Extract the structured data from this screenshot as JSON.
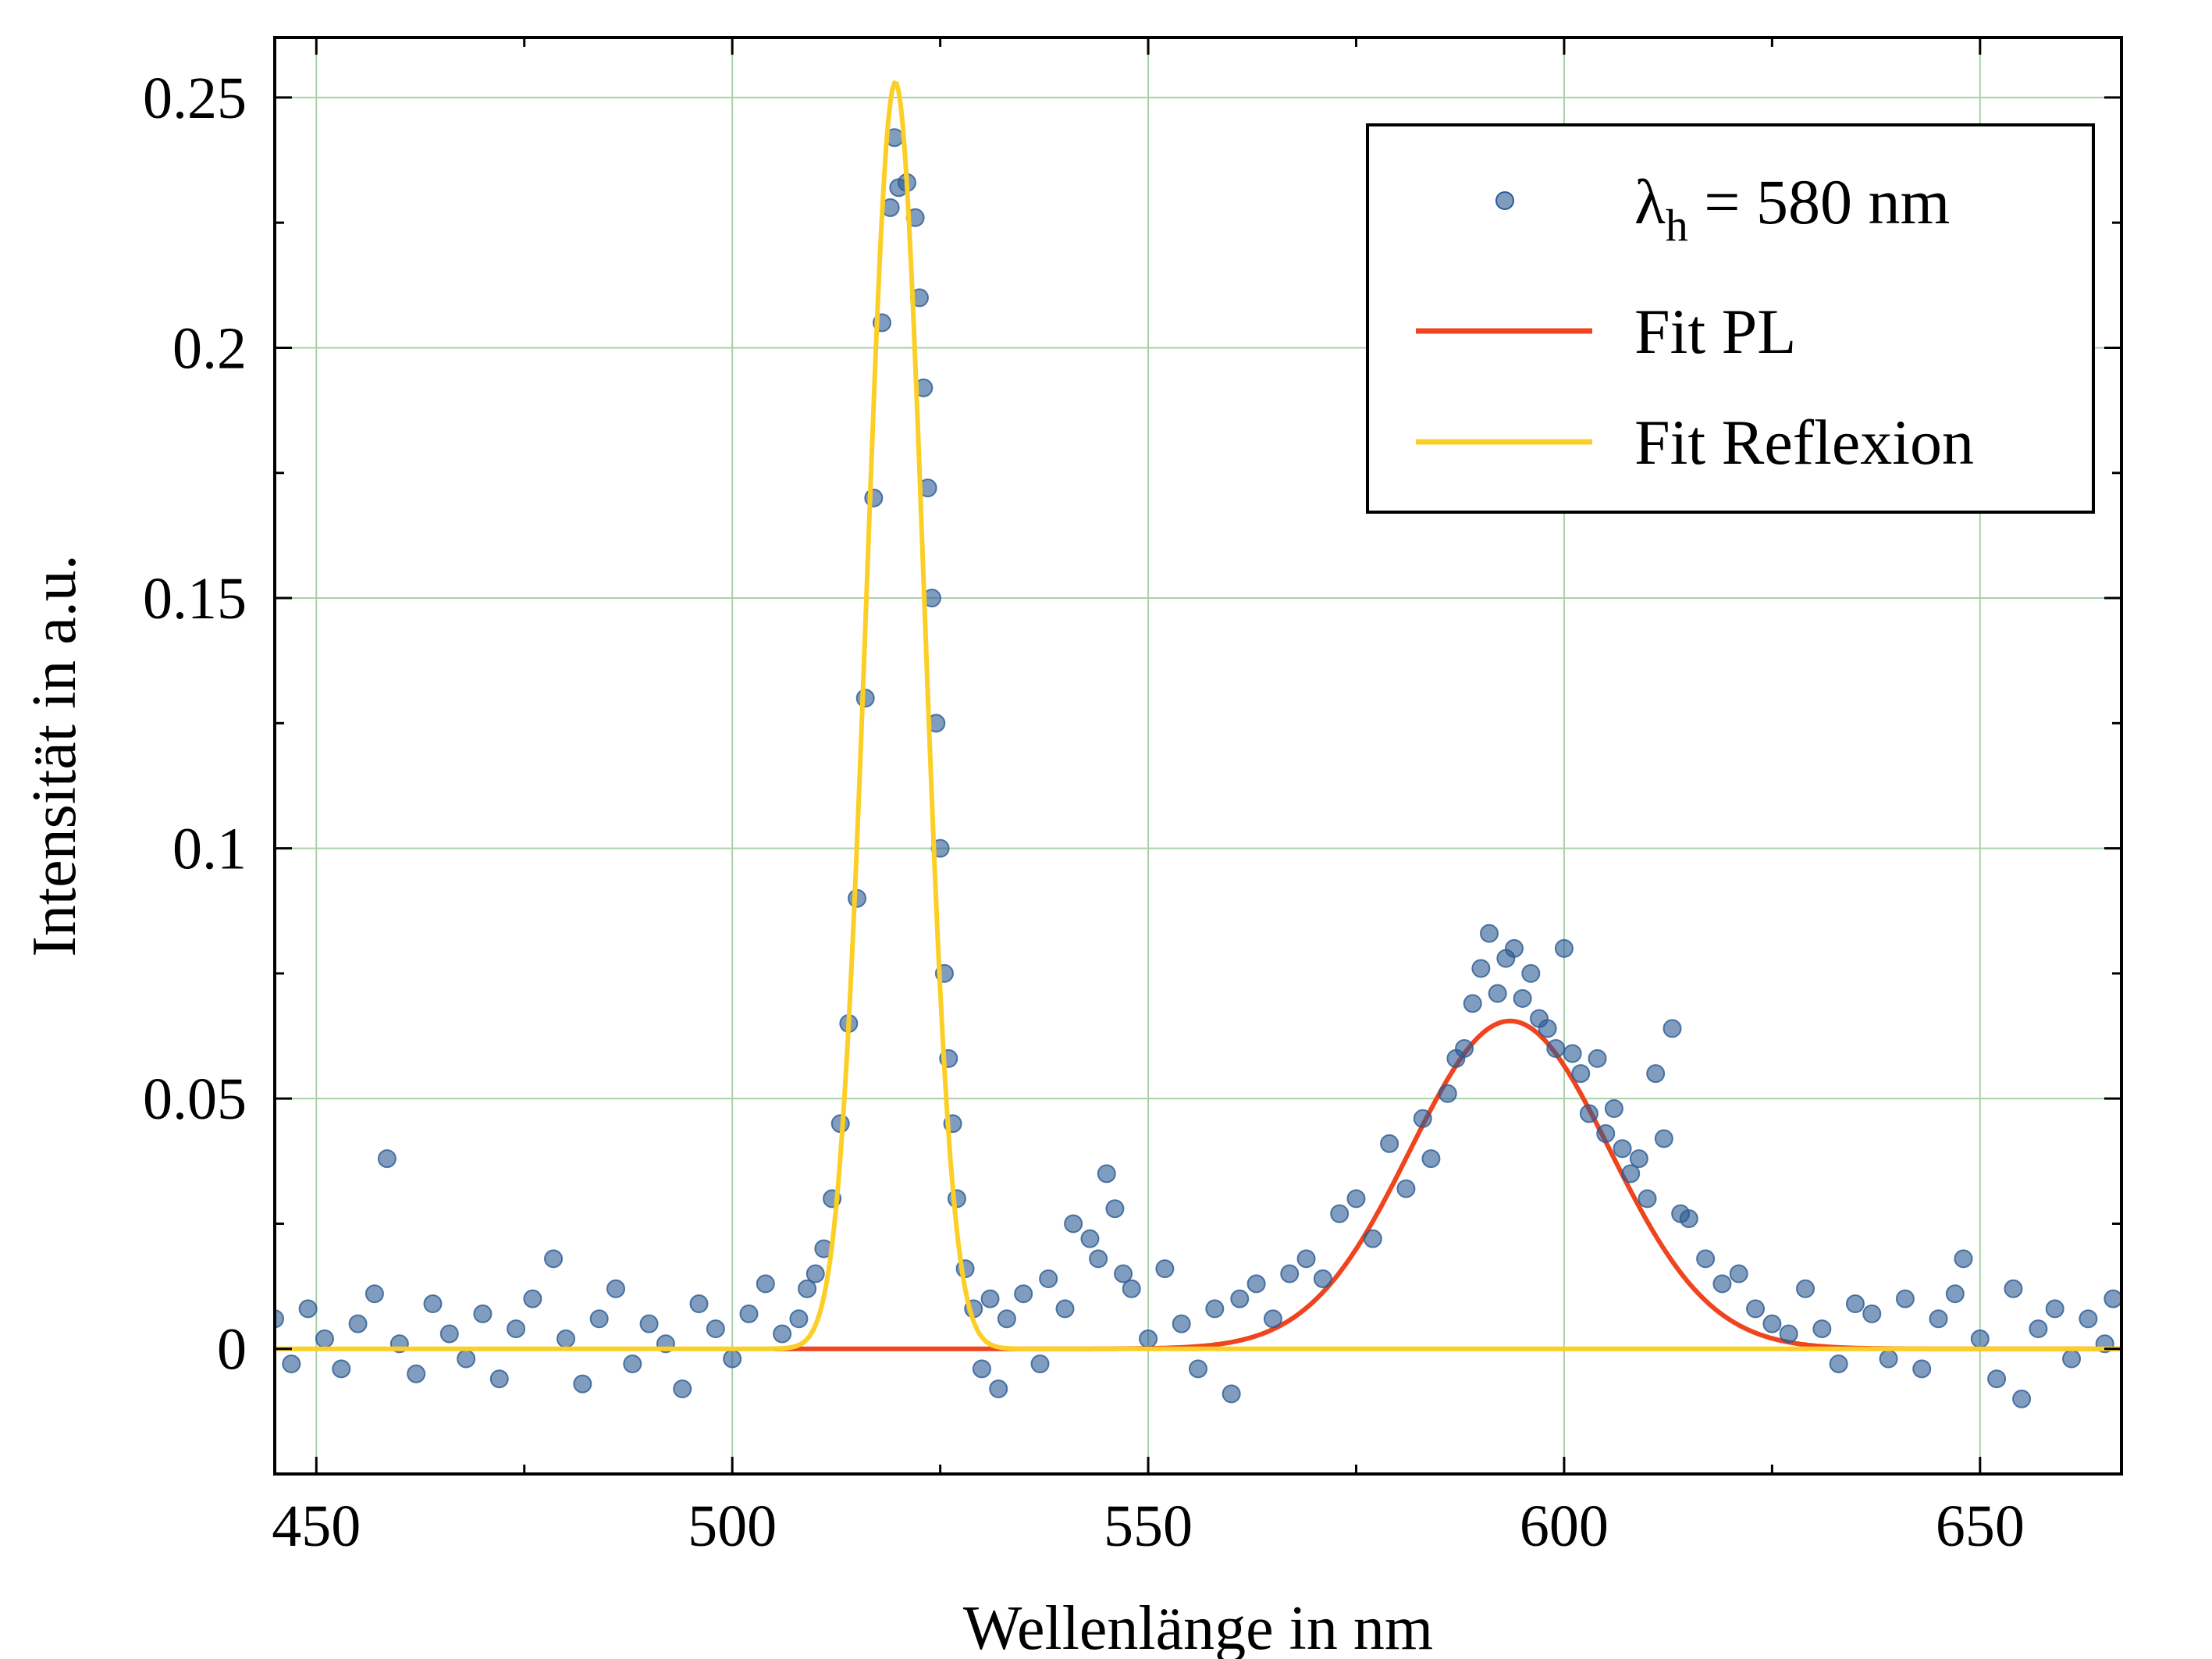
{
  "chart_data": {
    "type": "scatter",
    "xlabel": "Wellenlänge in nm",
    "ylabel": "Intensität in a.u.",
    "xlim": [
      445,
      667
    ],
    "ylim": [
      -0.025,
      0.262
    ],
    "x_ticks": [
      450,
      500,
      550,
      600,
      650
    ],
    "x_tick_labels": [
      "450",
      "500",
      "550",
      "600",
      "650"
    ],
    "y_ticks": [
      0,
      0.05,
      0.1,
      0.15,
      0.2,
      0.25
    ],
    "y_tick_labels": [
      "0",
      "0.05",
      "0.1",
      "0.15",
      "0.2",
      "0.25"
    ],
    "grid": true,
    "legend_position": "top-right",
    "legend": [
      {
        "symbol": "marker",
        "label_main": "λ",
        "label_sub": "h",
        "label_rest": " = 580 nm",
        "color": "#2b5a92"
      },
      {
        "symbol": "line",
        "label": "Fit PL",
        "color": "#f0441f"
      },
      {
        "symbol": "line",
        "label": "Fit Reflexion",
        "color": "#fccf26"
      }
    ],
    "series": [
      {
        "name": "λh = 580 nm",
        "kind": "scatter",
        "color": "#2b5a92",
        "points": [
          [
            445,
            0.006
          ],
          [
            447,
            -0.003
          ],
          [
            449,
            0.008
          ],
          [
            451,
            0.002
          ],
          [
            453,
            -0.004
          ],
          [
            455,
            0.005
          ],
          [
            457,
            0.011
          ],
          [
            458.5,
            0.038
          ],
          [
            460,
            0.001
          ],
          [
            462,
            -0.005
          ],
          [
            464,
            0.009
          ],
          [
            466,
            0.003
          ],
          [
            468,
            -0.002
          ],
          [
            470,
            0.007
          ],
          [
            472,
            -0.006
          ],
          [
            474,
            0.004
          ],
          [
            476,
            0.01
          ],
          [
            478.5,
            0.018
          ],
          [
            480,
            0.002
          ],
          [
            482,
            -0.007
          ],
          [
            484,
            0.006
          ],
          [
            486,
            0.012
          ],
          [
            488,
            -0.003
          ],
          [
            490,
            0.005
          ],
          [
            492,
            0.001
          ],
          [
            494,
            -0.008
          ],
          [
            496,
            0.009
          ],
          [
            498,
            0.004
          ],
          [
            500,
            -0.002
          ],
          [
            502,
            0.007
          ],
          [
            504,
            0.013
          ],
          [
            506,
            0.003
          ],
          [
            508,
            0.006
          ],
          [
            509,
            0.012
          ],
          [
            510,
            0.015
          ],
          [
            511,
            0.02
          ],
          [
            512,
            0.03
          ],
          [
            513,
            0.045
          ],
          [
            514,
            0.065
          ],
          [
            515,
            0.09
          ],
          [
            516,
            0.13
          ],
          [
            517,
            0.17
          ],
          [
            518,
            0.205
          ],
          [
            519,
            0.228
          ],
          [
            519.5,
            0.242
          ],
          [
            520,
            0.232
          ],
          [
            521,
            0.233
          ],
          [
            522,
            0.226
          ],
          [
            522.5,
            0.21
          ],
          [
            523,
            0.192
          ],
          [
            523.5,
            0.172
          ],
          [
            524,
            0.15
          ],
          [
            524.5,
            0.125
          ],
          [
            525,
            0.1
          ],
          [
            525.5,
            0.075
          ],
          [
            526,
            0.058
          ],
          [
            526.5,
            0.045
          ],
          [
            527,
            0.03
          ],
          [
            528,
            0.016
          ],
          [
            529,
            0.008
          ],
          [
            530,
            -0.004
          ],
          [
            531,
            0.01
          ],
          [
            532,
            -0.008
          ],
          [
            533,
            0.006
          ],
          [
            535,
            0.011
          ],
          [
            537,
            -0.003
          ],
          [
            538,
            0.014
          ],
          [
            540,
            0.008
          ],
          [
            541,
            0.025
          ],
          [
            543,
            0.022
          ],
          [
            544,
            0.018
          ],
          [
            545,
            0.035
          ],
          [
            546,
            0.028
          ],
          [
            547,
            0.015
          ],
          [
            548,
            0.012
          ],
          [
            550,
            0.002
          ],
          [
            552,
            0.016
          ],
          [
            554,
            0.005
          ],
          [
            556,
            -0.004
          ],
          [
            558,
            0.008
          ],
          [
            560,
            -0.009
          ],
          [
            561,
            0.01
          ],
          [
            563,
            0.013
          ],
          [
            565,
            0.006
          ],
          [
            567,
            0.015
          ],
          [
            569,
            0.018
          ],
          [
            571,
            0.014
          ],
          [
            573,
            0.027
          ],
          [
            575,
            0.03
          ],
          [
            577,
            0.022
          ],
          [
            579,
            0.041
          ],
          [
            581,
            0.032
          ],
          [
            583,
            0.046
          ],
          [
            584,
            0.038
          ],
          [
            586,
            0.051
          ],
          [
            587,
            0.058
          ],
          [
            588,
            0.06
          ],
          [
            589,
            0.069
          ],
          [
            590,
            0.076
          ],
          [
            591,
            0.083
          ],
          [
            592,
            0.071
          ],
          [
            593,
            0.078
          ],
          [
            594,
            0.08
          ],
          [
            595,
            0.07
          ],
          [
            596,
            0.075
          ],
          [
            597,
            0.066
          ],
          [
            598,
            0.064
          ],
          [
            599,
            0.06
          ],
          [
            600,
            0.08
          ],
          [
            601,
            0.059
          ],
          [
            602,
            0.055
          ],
          [
            603,
            0.047
          ],
          [
            604,
            0.058
          ],
          [
            605,
            0.043
          ],
          [
            606,
            0.048
          ],
          [
            607,
            0.04
          ],
          [
            608,
            0.035
          ],
          [
            609,
            0.038
          ],
          [
            610,
            0.03
          ],
          [
            611,
            0.055
          ],
          [
            612,
            0.042
          ],
          [
            613,
            0.064
          ],
          [
            614,
            0.027
          ],
          [
            615,
            0.026
          ],
          [
            617,
            0.018
          ],
          [
            619,
            0.013
          ],
          [
            621,
            0.015
          ],
          [
            623,
            0.008
          ],
          [
            625,
            0.005
          ],
          [
            627,
            0.003
          ],
          [
            629,
            0.012
          ],
          [
            631,
            0.004
          ],
          [
            633,
            -0.003
          ],
          [
            635,
            0.009
          ],
          [
            637,
            0.007
          ],
          [
            639,
            -0.002
          ],
          [
            641,
            0.01
          ],
          [
            643,
            -0.004
          ],
          [
            645,
            0.006
          ],
          [
            647,
            0.011
          ],
          [
            648,
            0.018
          ],
          [
            650,
            0.002
          ],
          [
            652,
            -0.006
          ],
          [
            654,
            0.012
          ],
          [
            655,
            -0.01
          ],
          [
            657,
            0.004
          ],
          [
            659,
            0.008
          ],
          [
            661,
            -0.002
          ],
          [
            663,
            0.006
          ],
          [
            665,
            0.001
          ],
          [
            666,
            0.01
          ]
        ]
      },
      {
        "name": "Fit PL",
        "kind": "gaussian_line",
        "color": "#f0441f",
        "amplitude": 0.0655,
        "center": 593.5,
        "sigma": 12.0
      },
      {
        "name": "Fit Reflexion",
        "kind": "gaussian_line",
        "color": "#fccf26",
        "amplitude": 0.253,
        "center": 519.6,
        "sigma": 3.4
      }
    ]
  }
}
